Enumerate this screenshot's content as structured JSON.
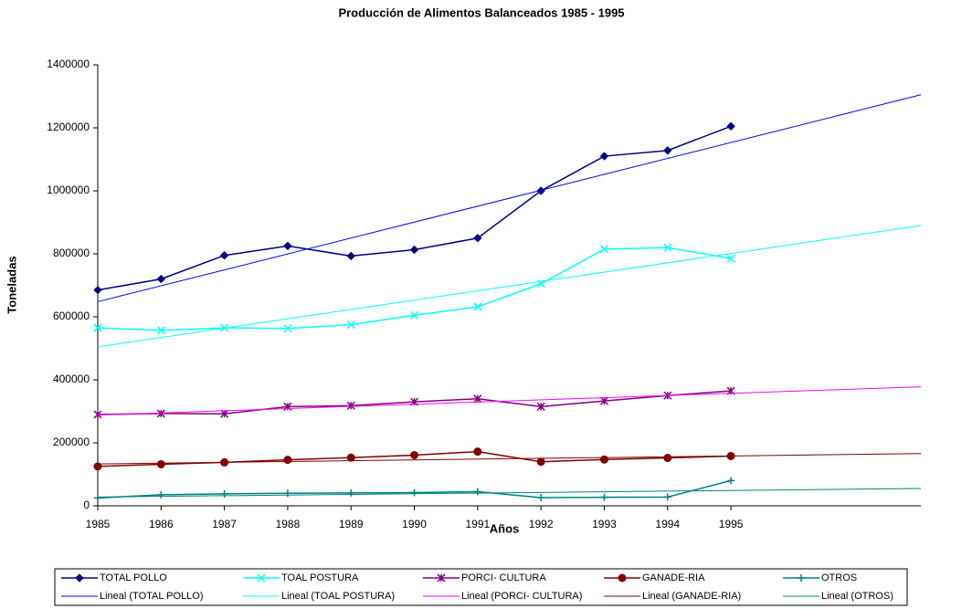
{
  "chart_data": {
    "type": "line",
    "title": "Producción de Alimentos Balanceados 1985 - 1995",
    "x_label": "Años",
    "y_label": "Toneladas",
    "x": [
      1985,
      1986,
      1987,
      1988,
      1989,
      1990,
      1991,
      1992,
      1993,
      1994,
      1995
    ],
    "xlim": [
      1985,
      1998
    ],
    "xticks": [
      1985,
      1986,
      1987,
      1988,
      1989,
      1990,
      1991,
      1992,
      1993,
      1994,
      1995
    ],
    "ylim": [
      0,
      1400000
    ],
    "yticks": [
      0,
      200000,
      400000,
      600000,
      800000,
      1000000,
      1200000,
      1400000
    ],
    "series": [
      {
        "name": "TOTAL POLLO",
        "color": "#000080",
        "marker": "diamond",
        "values": [
          685000,
          720000,
          795000,
          825000,
          793000,
          813000,
          850000,
          1000000,
          1110000,
          1128000,
          1205000
        ]
      },
      {
        "name": "TOAL POSTURA",
        "color": "#00ffff",
        "marker": "x",
        "values": [
          565000,
          557000,
          565000,
          563000,
          575000,
          605000,
          632000,
          705000,
          815000,
          820000,
          785000
        ]
      },
      {
        "name": "PORCI- CULTURA",
        "color": "#800080",
        "marker": "star",
        "values": [
          290000,
          293000,
          292000,
          315000,
          318000,
          330000,
          340000,
          315000,
          333000,
          350000,
          365000
        ]
      },
      {
        "name": "GANADE-RIA",
        "color": "#800000",
        "marker": "circle",
        "values": [
          125000,
          132000,
          138000,
          146000,
          153000,
          161000,
          172000,
          140000,
          147000,
          152000,
          158000
        ]
      },
      {
        "name": "OTROS",
        "color": "#008080",
        "marker": "plus",
        "values": [
          25000,
          35000,
          38000,
          40000,
          41000,
          42000,
          45000,
          26000,
          27000,
          28000,
          80000
        ]
      },
      {
        "name": "Lineal (TOTAL POLLO)",
        "color": "#0000ff",
        "x": [
          1985,
          1998
        ],
        "values": [
          648000,
          1305000
        ]
      },
      {
        "name": "Lineal (TOAL POSTURA)",
        "color": "#00ffff",
        "x": [
          1985,
          1998
        ],
        "values": [
          505000,
          890000
        ]
      },
      {
        "name": "Lineal (PORCI- CULTURA)",
        "color": "#ff00ff",
        "x": [
          1985,
          1998
        ],
        "values": [
          288000,
          378000
        ]
      },
      {
        "name": "Lineal (GANADE-RIA)",
        "color": "#800000",
        "x": [
          1985,
          1998
        ],
        "values": [
          133000,
          166000
        ]
      },
      {
        "name": "Lineal (OTROS)",
        "color": "#008080",
        "x": [
          1985,
          1998
        ],
        "values": [
          28000,
          55000
        ]
      }
    ]
  }
}
